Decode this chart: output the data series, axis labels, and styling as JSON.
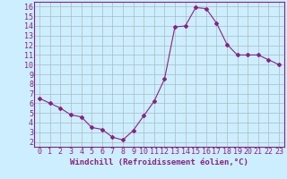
{
  "x": [
    0,
    1,
    2,
    3,
    4,
    5,
    6,
    7,
    8,
    9,
    10,
    11,
    12,
    13,
    14,
    15,
    16,
    17,
    18,
    19,
    20,
    21,
    22,
    23
  ],
  "y": [
    6.5,
    6.0,
    5.5,
    4.8,
    4.6,
    3.5,
    3.3,
    2.5,
    2.2,
    3.2,
    4.7,
    6.2,
    8.5,
    13.9,
    14.0,
    15.9,
    15.8,
    14.3,
    12.1,
    11.0,
    11.0,
    11.0,
    10.5,
    10.0
  ],
  "line_color": "#882288",
  "marker": "D",
  "marker_size": 2,
  "bg_color": "#cceeff",
  "grid_color": "#aabbbb",
  "xlabel": "Windchill (Refroidissement éolien,°C)",
  "xlim": [
    -0.5,
    23.5
  ],
  "ylim": [
    1.5,
    16.5
  ],
  "yticks": [
    2,
    3,
    4,
    5,
    6,
    7,
    8,
    9,
    10,
    11,
    12,
    13,
    14,
    15,
    16
  ],
  "xticks": [
    0,
    1,
    2,
    3,
    4,
    5,
    6,
    7,
    8,
    9,
    10,
    11,
    12,
    13,
    14,
    15,
    16,
    17,
    18,
    19,
    20,
    21,
    22,
    23
  ],
  "tick_label_color": "#882288",
  "axis_label_color": "#882288",
  "spine_color": "#882288",
  "xlabel_fontsize": 6.5,
  "tick_fontsize": 6.0
}
